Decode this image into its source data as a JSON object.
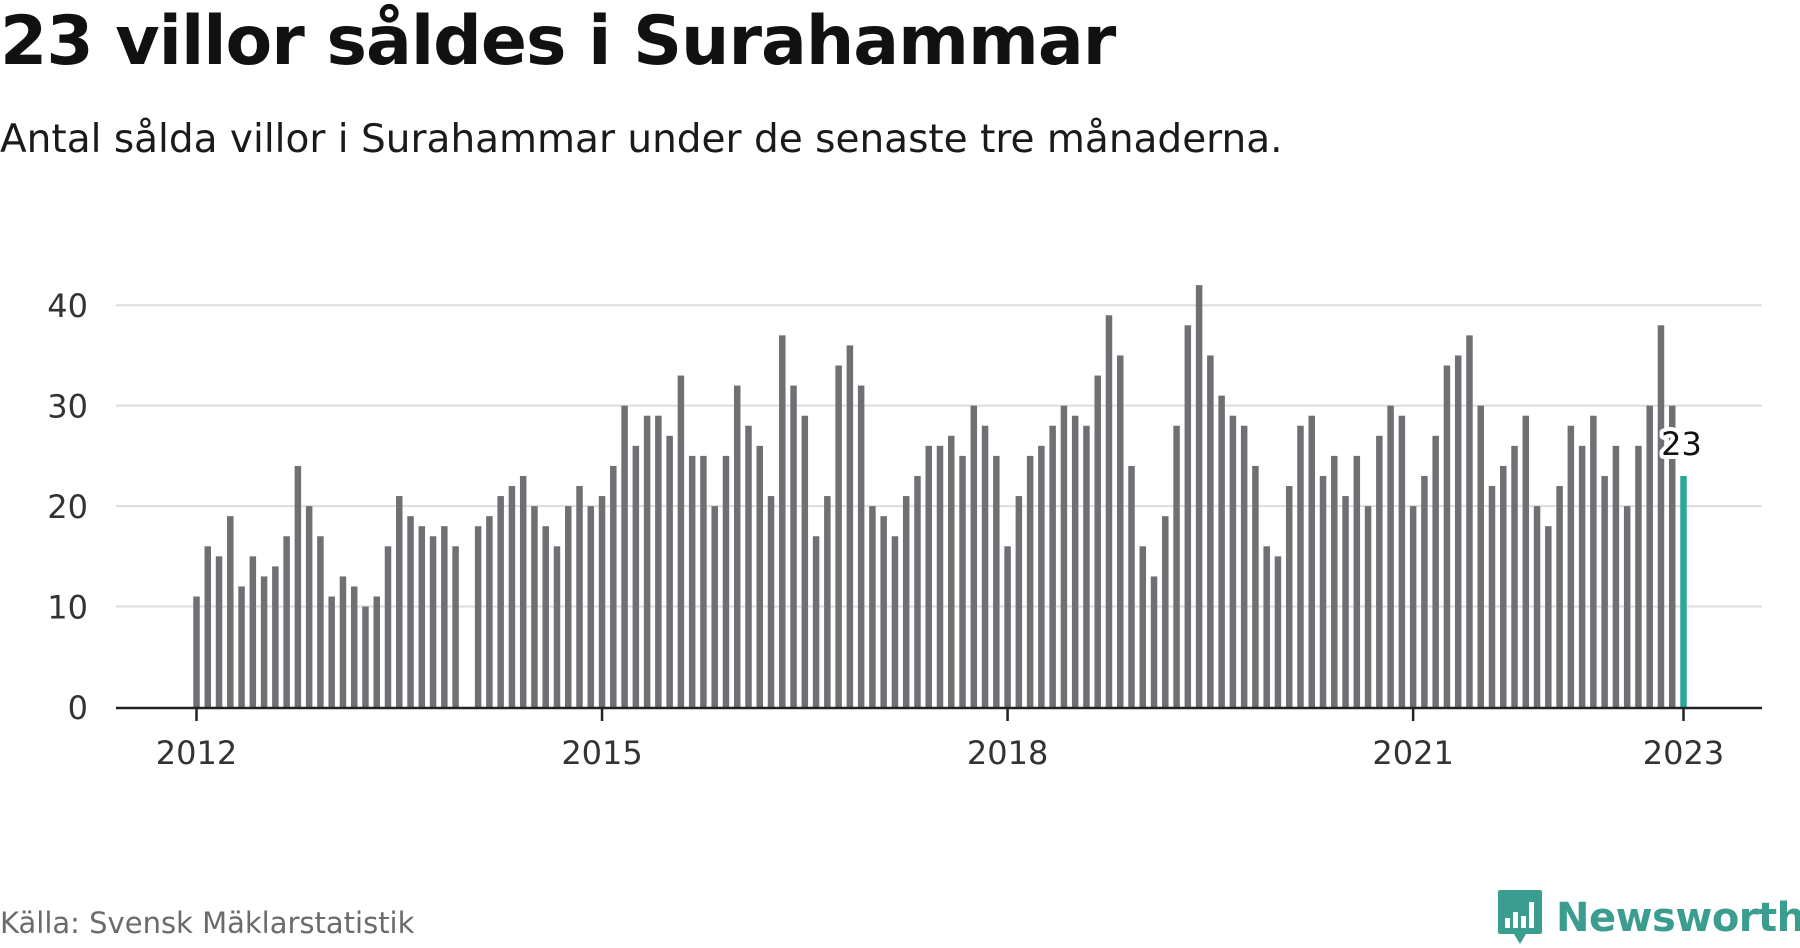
{
  "header": {
    "title": "23 villor såldes i Surahammar",
    "subtitle": "Antal sålda villor i Surahammar under de senaste tre månaderna."
  },
  "footer": {
    "source": "Källa: Svensk Mäklarstatistik",
    "brand": "Newsworthy"
  },
  "colors": {
    "bar": "#707074",
    "highlight": "#2ba89b",
    "grid": "#dddddd",
    "axis": "#222222",
    "brand": "#3a9d8f"
  },
  "chart_data": {
    "type": "bar",
    "x_start": "2012-01",
    "x_end": "2023-01",
    "xticks": [
      "2012",
      "2015",
      "2018",
      "2021",
      "2023"
    ],
    "yticks": [
      "0",
      "10",
      "20",
      "30",
      "40"
    ],
    "ylim": [
      0,
      45
    ],
    "grid": true,
    "highlight_label": "23",
    "series": [
      {
        "values": [
          11,
          16,
          15,
          19,
          12,
          15,
          13,
          14,
          17,
          24,
          20,
          17,
          11,
          13,
          12,
          10,
          11,
          16,
          21,
          19,
          18,
          17,
          18,
          16,
          null,
          18,
          19,
          21,
          22,
          23,
          20,
          18,
          16,
          20,
          22,
          20,
          21,
          24,
          30,
          26,
          29,
          29,
          27,
          33,
          25,
          25,
          20,
          25,
          32,
          28,
          26,
          21,
          37,
          32,
          29,
          17,
          21,
          34,
          36,
          32,
          20,
          19,
          17,
          21,
          23,
          26,
          26,
          27,
          25,
          30,
          28,
          25,
          16,
          21,
          25,
          26,
          28,
          30,
          29,
          28,
          33,
          39,
          35,
          24,
          16,
          13,
          19,
          28,
          38,
          42,
          35,
          31,
          29,
          28,
          24,
          16,
          15,
          22,
          28,
          29,
          23,
          25,
          21,
          25,
          20,
          27,
          30,
          29,
          20,
          23,
          27,
          34,
          35,
          37,
          30,
          22,
          24,
          26,
          29,
          20,
          18,
          22,
          28,
          26,
          29,
          23,
          26,
          20,
          26,
          30,
          38,
          30,
          23
        ]
      }
    ]
  }
}
